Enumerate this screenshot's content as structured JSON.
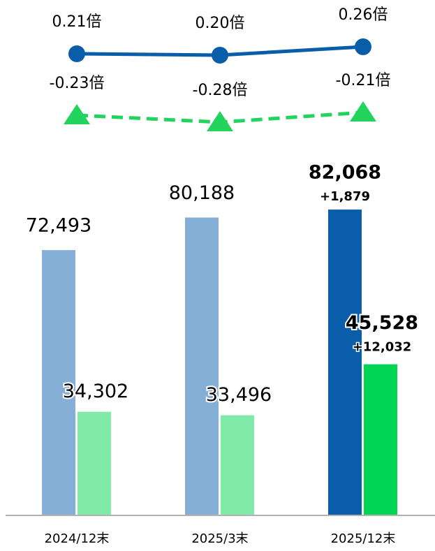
{
  "chart_data": {
    "type": "bar",
    "categories": [
      "2024/12末",
      "2025/3末",
      "2025/12末"
    ],
    "ylim": [
      10000,
      90000
    ],
    "y2lim": [
      -0.4,
      0.4
    ],
    "series": [
      {
        "name": null,
        "colors": [
          "#85afd7",
          "#85afd7",
          "#0a5ea9"
        ],
        "bold": [
          false,
          false,
          true
        ],
        "values": [
          72493,
          80188,
          82068
        ],
        "value_labels": [
          "72,493",
          "80,188",
          "82,068"
        ]
      },
      {
        "name": null,
        "colors": [
          "#80eaa9",
          "#80eaa9",
          "#00d454"
        ],
        "bold": [
          false,
          false,
          true
        ],
        "values": [
          34302,
          33496,
          45528
        ],
        "value_labels": [
          "34,302",
          "33,496",
          "45,528"
        ]
      },
      {
        "name": null,
        "type": "line",
        "axis": "y2",
        "marker": "circle",
        "dashed": false,
        "color": "#0a5ea9",
        "values": [
          0.21,
          0.2,
          0.26
        ],
        "value_labels": [
          "0.21倍",
          "0.20倍",
          "0.26倍"
        ]
      },
      {
        "name": null,
        "type": "line",
        "axis": "y2",
        "marker": "triangle",
        "dashed": true,
        "color": "#22d35e",
        "values": [
          -0.23,
          -0.28,
          -0.21
        ],
        "value_labels": [
          "-0.23倍",
          "-0.28倍",
          "-0.21倍"
        ]
      }
    ],
    "annotations": [
      "+1,879",
      "+12,032"
    ]
  }
}
